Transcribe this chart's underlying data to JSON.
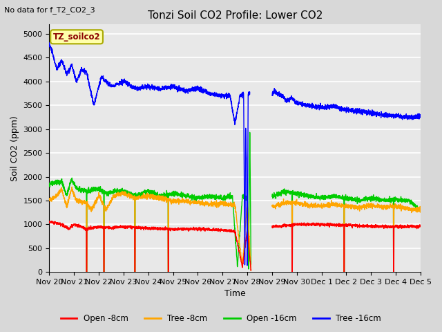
{
  "title": "Tonzi Soil CO2 Profile: Lower CO2",
  "ylabel": "Soil CO2 (ppm)",
  "xlabel": "Time",
  "no_data_text": "No data for f_T2_CO2_3",
  "legend_label": "TZ_soilco2",
  "ylim": [
    0,
    5200
  ],
  "yticks": [
    0,
    500,
    1000,
    1500,
    2000,
    2500,
    3000,
    3500,
    4000,
    4500,
    5000
  ],
  "colors": {
    "open_8cm": "#ff0000",
    "tree_8cm": "#ffa500",
    "open_16cm": "#00cc00",
    "tree_16cm": "#0000ff"
  },
  "legend_entries": [
    {
      "label": "Open -8cm",
      "color": "#ff0000"
    },
    {
      "label": "Tree -8cm",
      "color": "#ffa500"
    },
    {
      "label": "Open -16cm",
      "color": "#00cc00"
    },
    {
      "label": "Tree -16cm",
      "color": "#0000ff"
    }
  ],
  "plot_bg_color": "#e8e8e8",
  "fig_bg_color": "#d8d8d8",
  "x_labels": [
    "Nov 20",
    "Nov 21",
    "Nov 22",
    "Nov 23",
    "Nov 24",
    "Nov 25",
    "Nov 26",
    "Nov 27",
    "Nov 28",
    "Nov 29",
    "Nov 30",
    "Dec 1",
    "Dec 2",
    "Dec 3",
    "Dec 4",
    "Dec 5"
  ]
}
